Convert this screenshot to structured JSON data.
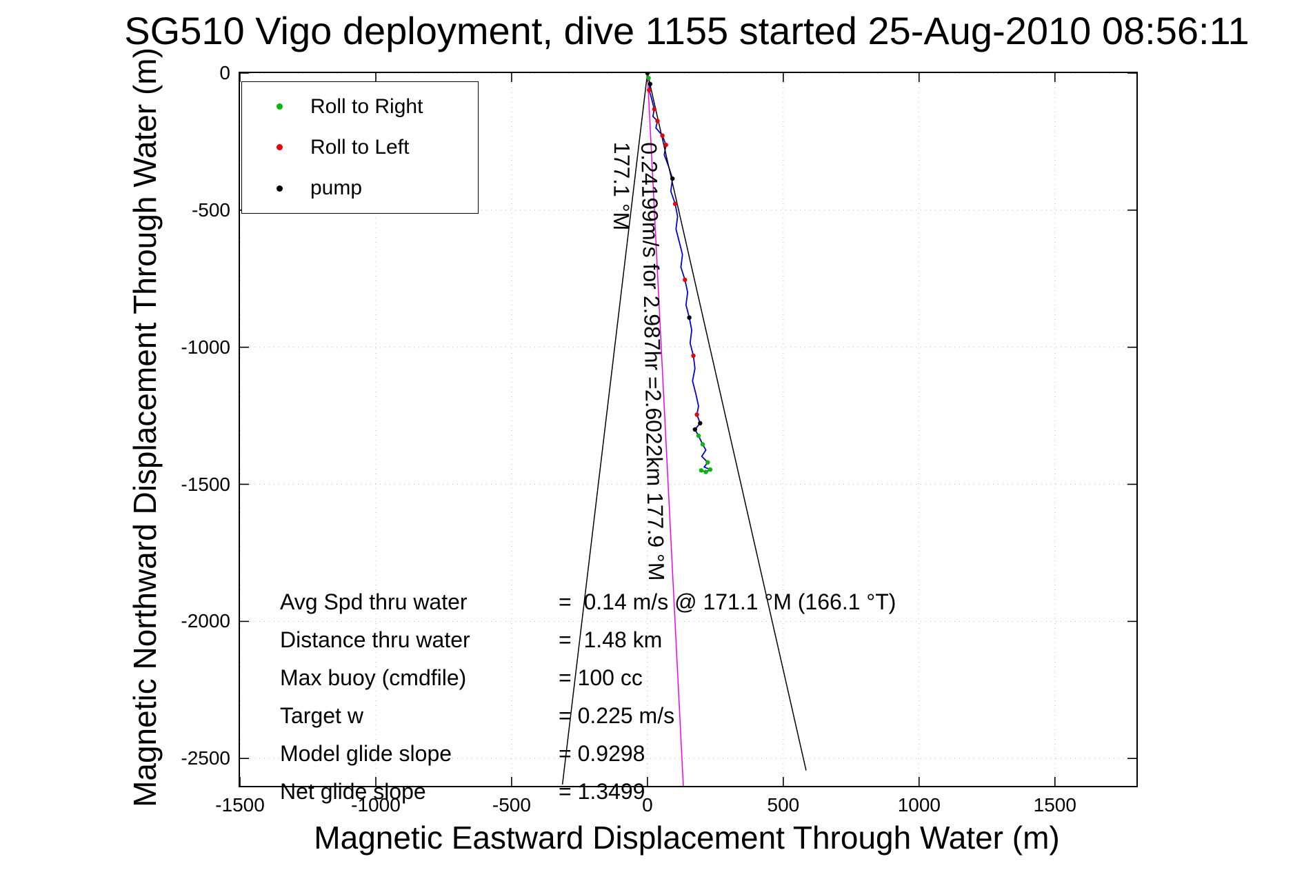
{
  "chart_data": {
    "type": "line",
    "title": "SG510 Vigo deployment, dive 1155 started 25-Aug-2010 08:56:11",
    "xlabel": "Magnetic Eastward Displacement Through Water (m)",
    "ylabel": "Magnetic Northward Displacement Through Water (m)",
    "xlim": [
      -1500,
      1800
    ],
    "ylim": [
      -2600,
      0
    ],
    "x_ticks": [
      -1500,
      -1000,
      -500,
      0,
      500,
      1000,
      1500
    ],
    "y_ticks": [
      0,
      -500,
      -1000,
      -1500,
      -2000,
      -2500
    ],
    "grid": "dotted",
    "series": [
      {
        "name": "track-through-water",
        "color": "#0000dd",
        "width": 1.8,
        "points": [
          [
            0,
            0
          ],
          [
            4,
            -18
          ],
          [
            10,
            -40
          ],
          [
            6,
            -62
          ],
          [
            14,
            -88
          ],
          [
            25,
            -132
          ],
          [
            20,
            -158
          ],
          [
            37,
            -175
          ],
          [
            31,
            -200
          ],
          [
            55,
            -228
          ],
          [
            68,
            -262
          ],
          [
            62,
            -298
          ],
          [
            77,
            -338
          ],
          [
            92,
            -385
          ],
          [
            86,
            -431
          ],
          [
            102,
            -477
          ],
          [
            111,
            -523
          ],
          [
            105,
            -569
          ],
          [
            117,
            -615
          ],
          [
            129,
            -662
          ],
          [
            123,
            -708
          ],
          [
            138,
            -754
          ],
          [
            148,
            -800
          ],
          [
            142,
            -846
          ],
          [
            154,
            -892
          ],
          [
            163,
            -938
          ],
          [
            157,
            -985
          ],
          [
            169,
            -1031
          ],
          [
            175,
            -1077
          ],
          [
            166,
            -1123
          ],
          [
            178,
            -1169
          ],
          [
            188,
            -1215
          ],
          [
            182,
            -1246
          ],
          [
            194,
            -1277
          ],
          [
            175,
            -1300
          ],
          [
            188,
            -1323
          ],
          [
            203,
            -1354
          ],
          [
            215,
            -1375
          ],
          [
            200,
            -1398
          ],
          [
            222,
            -1420
          ],
          [
            209,
            -1437
          ],
          [
            231,
            -1446
          ],
          [
            215,
            -1455
          ],
          [
            198,
            -1449
          ]
        ]
      },
      {
        "name": "bearing-cone-left",
        "color": "#000000",
        "width": 1.5,
        "points": [
          [
            0,
            0
          ],
          [
            -313,
            -2595
          ]
        ]
      },
      {
        "name": "bearing-cone-right",
        "color": "#000000",
        "width": 1.5,
        "points": [
          [
            0,
            0
          ],
          [
            584,
            -2544
          ]
        ]
      },
      {
        "name": "desired-track",
        "color": "#ee00ee",
        "width": 1.5,
        "points": [
          [
            0,
            0
          ],
          [
            132,
            -2600
          ]
        ]
      }
    ],
    "markers": [
      {
        "name": "Roll to Right",
        "color": "#00bb00",
        "points": [
          [
            4,
            -18
          ],
          [
            188,
            -1323
          ],
          [
            203,
            -1354
          ],
          [
            222,
            -1420
          ],
          [
            231,
            -1446
          ],
          [
            215,
            -1455
          ],
          [
            198,
            -1449
          ]
        ]
      },
      {
        "name": "Roll to Left",
        "color": "#ee0000",
        "points": [
          [
            6,
            -62
          ],
          [
            25,
            -132
          ],
          [
            37,
            -175
          ],
          [
            55,
            -228
          ],
          [
            68,
            -262
          ],
          [
            102,
            -477
          ],
          [
            138,
            -754
          ],
          [
            169,
            -1031
          ],
          [
            182,
            -1246
          ]
        ]
      },
      {
        "name": "pump",
        "color": "#000000",
        "points": [
          [
            0,
            0
          ],
          [
            10,
            -40
          ],
          [
            92,
            -385
          ],
          [
            154,
            -892
          ],
          [
            194,
            -1277
          ],
          [
            175,
            -1300
          ]
        ]
      }
    ],
    "annotations": [
      {
        "name": "track-summary",
        "text": "0.24199m/s for 2.987hr =2.6022km  177.9 °M"
      },
      {
        "name": "desired-heading",
        "text": "177.1 °M"
      }
    ]
  },
  "stats": {
    "rows": [
      {
        "label": "Avg Spd thru water",
        "value": "=  0.14 m/s @ 171.1 °M (166.1 °T)"
      },
      {
        "label": "Distance thru water",
        "value": "=  1.48 km"
      },
      {
        "label": "Max buoy (cmdfile)",
        "value": "= 100 cc"
      },
      {
        "label": "Target w",
        "value": "= 0.225 m/s"
      },
      {
        "label": "Model glide slope",
        "value": "= 0.9298"
      },
      {
        "label": "Net glide slope",
        "value": "= 1.3499"
      }
    ]
  }
}
